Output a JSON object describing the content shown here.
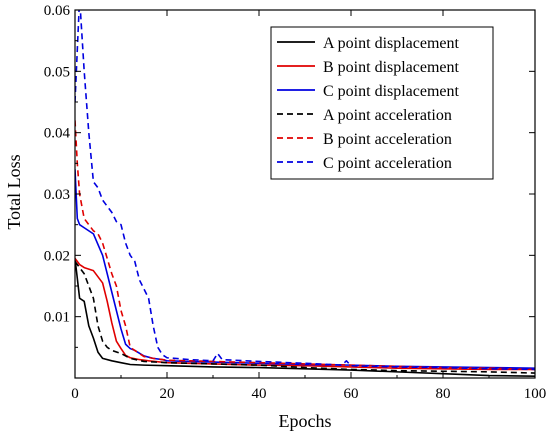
{
  "chart_data": {
    "type": "line",
    "title": "",
    "xlabel": "Epochs",
    "ylabel": "Total Loss",
    "xlim": [
      0,
      100
    ],
    "ylim": [
      0,
      0.06
    ],
    "xticks": [
      0,
      20,
      40,
      60,
      80,
      100
    ],
    "xtick_labels": [
      "0",
      "20",
      "40",
      "60",
      "80",
      "100"
    ],
    "yticks": [
      0.01,
      0.02,
      0.03,
      0.04,
      0.05,
      0.06
    ],
    "ytick_labels": [
      "0.01",
      "0.02",
      "0.03",
      "0.04",
      "0.05",
      "0.06"
    ],
    "grid": false,
    "legend_position": "top-right",
    "series": [
      {
        "name": "A point displacement",
        "color": "#000000",
        "style": "solid",
        "points": [
          [
            0,
            0.0195
          ],
          [
            1,
            0.013
          ],
          [
            2,
            0.0125
          ],
          [
            3,
            0.0085
          ],
          [
            4,
            0.0065
          ],
          [
            5,
            0.0042
          ],
          [
            6,
            0.0032
          ],
          [
            8,
            0.0028
          ],
          [
            10,
            0.0025
          ],
          [
            12,
            0.0022
          ],
          [
            15,
            0.0021
          ],
          [
            20,
            0.002
          ],
          [
            30,
            0.0018
          ],
          [
            40,
            0.0017
          ],
          [
            50,
            0.0015
          ],
          [
            60,
            0.0013
          ],
          [
            70,
            0.001
          ],
          [
            80,
            0.0007
          ],
          [
            90,
            0.0004
          ],
          [
            100,
            0.0003
          ]
        ]
      },
      {
        "name": "B point displacement",
        "color": "#e00000",
        "style": "solid",
        "points": [
          [
            0,
            0.0195
          ],
          [
            1,
            0.0185
          ],
          [
            2,
            0.018
          ],
          [
            4,
            0.0175
          ],
          [
            6,
            0.0155
          ],
          [
            7,
            0.0125
          ],
          [
            8,
            0.009
          ],
          [
            9,
            0.006
          ],
          [
            10,
            0.0048
          ],
          [
            11,
            0.0037
          ],
          [
            12,
            0.0033
          ],
          [
            14,
            0.003
          ],
          [
            16,
            0.0028
          ],
          [
            20,
            0.0025
          ],
          [
            30,
            0.0023
          ],
          [
            40,
            0.0021
          ],
          [
            50,
            0.002
          ],
          [
            60,
            0.0018
          ],
          [
            70,
            0.0016
          ],
          [
            80,
            0.0015
          ],
          [
            90,
            0.0014
          ],
          [
            100,
            0.0014
          ]
        ]
      },
      {
        "name": "C point displacement",
        "color": "#0000e0",
        "style": "solid",
        "points": [
          [
            0,
            0.034
          ],
          [
            0.5,
            0.026
          ],
          [
            1,
            0.025
          ],
          [
            2,
            0.0245
          ],
          [
            4,
            0.0235
          ],
          [
            6,
            0.02
          ],
          [
            7,
            0.017
          ],
          [
            8,
            0.014
          ],
          [
            9,
            0.011
          ],
          [
            10,
            0.008
          ],
          [
            11,
            0.0055
          ],
          [
            12,
            0.0048
          ],
          [
            13,
            0.0045
          ],
          [
            15,
            0.0036
          ],
          [
            17,
            0.0032
          ],
          [
            19,
            0.003
          ],
          [
            20,
            0.0028
          ],
          [
            30,
            0.0026
          ],
          [
            40,
            0.0024
          ],
          [
            50,
            0.0022
          ],
          [
            60,
            0.0021
          ],
          [
            70,
            0.0019
          ],
          [
            80,
            0.0018
          ],
          [
            90,
            0.0017
          ],
          [
            100,
            0.0016
          ]
        ]
      },
      {
        "name": "A point acceleration",
        "color": "#000000",
        "style": "dashed",
        "points": [
          [
            0,
            0.019
          ],
          [
            1,
            0.018
          ],
          [
            2,
            0.017
          ],
          [
            3,
            0.015
          ],
          [
            4,
            0.013
          ],
          [
            5,
            0.0085
          ],
          [
            6,
            0.006
          ],
          [
            7,
            0.005
          ],
          [
            8,
            0.0045
          ],
          [
            10,
            0.004
          ],
          [
            12,
            0.0032
          ],
          [
            15,
            0.0027
          ],
          [
            20,
            0.0025
          ],
          [
            30,
            0.0023
          ],
          [
            40,
            0.0021
          ],
          [
            50,
            0.0017
          ],
          [
            60,
            0.0014
          ],
          [
            70,
            0.0012
          ],
          [
            80,
            0.0011
          ],
          [
            90,
            0.001
          ],
          [
            100,
            0.0008
          ]
        ]
      },
      {
        "name": "B point acceleration",
        "color": "#e00000",
        "style": "dashed",
        "points": [
          [
            0,
            0.042
          ],
          [
            0.5,
            0.035
          ],
          [
            1,
            0.03
          ],
          [
            2,
            0.026
          ],
          [
            3,
            0.025
          ],
          [
            4,
            0.024
          ],
          [
            5,
            0.0235
          ],
          [
            6,
            0.022
          ],
          [
            7,
            0.0195
          ],
          [
            8,
            0.017
          ],
          [
            9,
            0.015
          ],
          [
            10,
            0.011
          ],
          [
            11,
            0.0085
          ],
          [
            12,
            0.005
          ],
          [
            13,
            0.0045
          ],
          [
            15,
            0.0035
          ],
          [
            17,
            0.0032
          ],
          [
            20,
            0.0029
          ],
          [
            30,
            0.0027
          ],
          [
            40,
            0.0025
          ],
          [
            50,
            0.0023
          ],
          [
            60,
            0.0021
          ],
          [
            70,
            0.0019
          ],
          [
            80,
            0.0017
          ],
          [
            90,
            0.0016
          ],
          [
            100,
            0.0014
          ]
        ]
      },
      {
        "name": "C point acceleration",
        "color": "#0000e0",
        "style": "dashed",
        "points": [
          [
            0,
            0.045
          ],
          [
            1,
            0.062
          ],
          [
            2,
            0.05
          ],
          [
            3,
            0.04
          ],
          [
            4,
            0.032
          ],
          [
            5,
            0.031
          ],
          [
            6,
            0.029
          ],
          [
            7,
            0.028
          ],
          [
            8,
            0.027
          ],
          [
            9,
            0.0255
          ],
          [
            10,
            0.025
          ],
          [
            11,
            0.022
          ],
          [
            12,
            0.02
          ],
          [
            13,
            0.019
          ],
          [
            14,
            0.016
          ],
          [
            15,
            0.0145
          ],
          [
            16,
            0.013
          ],
          [
            17,
            0.0085
          ],
          [
            18,
            0.005
          ],
          [
            19,
            0.0038
          ],
          [
            20,
            0.0033
          ],
          [
            25,
            0.003
          ],
          [
            30,
            0.0028
          ],
          [
            31,
            0.004
          ],
          [
            32,
            0.003
          ],
          [
            40,
            0.0027
          ],
          [
            50,
            0.0024
          ],
          [
            58,
            0.0021
          ],
          [
            59,
            0.0028
          ],
          [
            60,
            0.002
          ],
          [
            70,
            0.0018
          ],
          [
            80,
            0.0017
          ],
          [
            90,
            0.0015
          ],
          [
            100,
            0.0014
          ]
        ]
      }
    ]
  }
}
